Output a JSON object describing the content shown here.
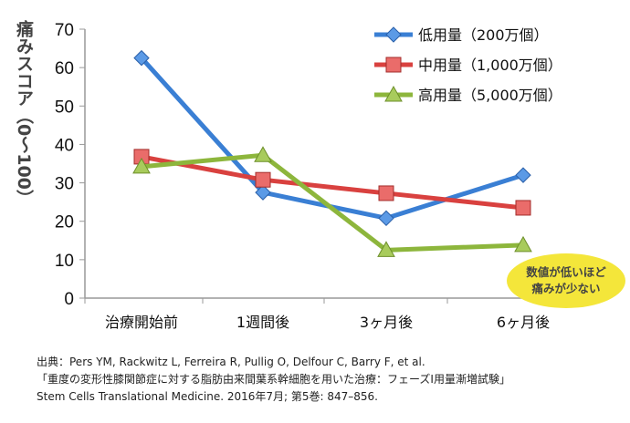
{
  "chart_data": {
    "type": "line",
    "title": "",
    "xlabel": "",
    "ylabel": "痛みスコア（0〜100）",
    "ylim": [
      0,
      70
    ],
    "yticks": [
      0,
      10,
      20,
      30,
      40,
      50,
      60,
      70
    ],
    "grid": false,
    "legend_position": "top-right",
    "categories": [
      "治療開始前",
      "1週間後",
      "3ヶ月後",
      "6ヶ月後"
    ],
    "series": [
      {
        "name": "低用量（200万個）",
        "color": "#3a7fd4",
        "marker": "diamond",
        "values": [
          62.5,
          27.5,
          20.8,
          32
        ]
      },
      {
        "name": "中用量（1,000万個）",
        "color": "#d9413f",
        "marker": "square",
        "values": [
          36.8,
          30.8,
          27.3,
          23.5
        ]
      },
      {
        "name": "高用量（5,000万個）",
        "color": "#8db63c",
        "marker": "triangle",
        "values": [
          34.2,
          37.2,
          12.5,
          13.8
        ]
      }
    ],
    "annotation": "数値が低いほど痛みが少ない"
  },
  "note": {
    "line1": "数値が低いほど",
    "line2": "痛みが少ない"
  },
  "source": {
    "line1": "出典：Pers YM, Rackwitz L, Ferreira R, Pullig O, Delfour C, Barry F, et al.",
    "line2": "「重度の変形性膝関節症に対する脂肪由来間葉系幹細胞を用いた治療：フェーズI用量漸増試験」",
    "line3": " Stem Cells Translational Medicine. 2016年7月; 第5巻: 847–856."
  }
}
